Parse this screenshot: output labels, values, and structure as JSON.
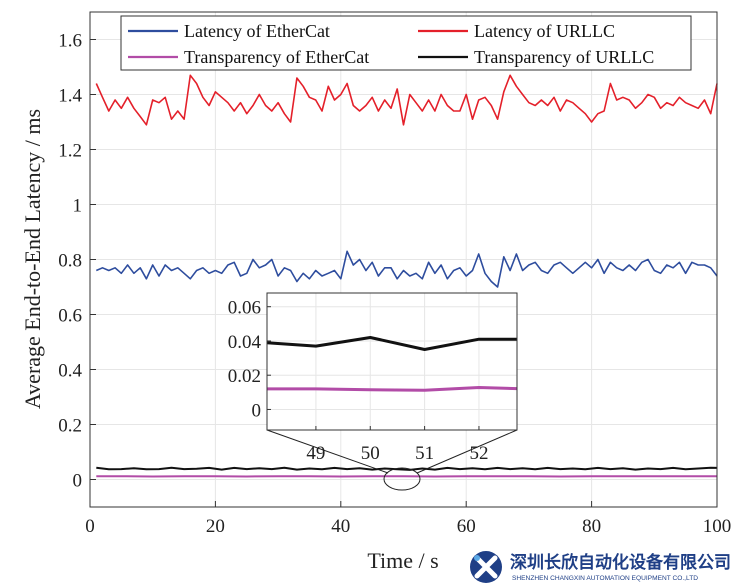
{
  "chart_data": {
    "type": "line",
    "title": "",
    "xlabel": "Time / s",
    "ylabel": "Average End-to-End Latency / ms",
    "xlim": [
      0,
      100
    ],
    "ylim": [
      -0.1,
      1.7
    ],
    "xticks": [
      0,
      20,
      40,
      60,
      80,
      100
    ],
    "xtick_labels": [
      "0",
      "20",
      "40",
      "60",
      "80",
      "100"
    ],
    "yticks": [
      0,
      0.2,
      0.4,
      0.6,
      0.8,
      1,
      1.2,
      1.4,
      1.6
    ],
    "ytick_labels": [
      "0",
      "0.2",
      "0.4",
      "0.6",
      "0.8",
      "1",
      "1.2",
      "1.4",
      "1.6"
    ],
    "grid": true,
    "legend_position": "top",
    "series": [
      {
        "name": "Latency of EtherCat",
        "color": "#2e4d9e",
        "x": [
          1,
          2,
          3,
          4,
          5,
          6,
          7,
          8,
          9,
          10,
          11,
          12,
          13,
          14,
          15,
          16,
          17,
          18,
          19,
          20,
          21,
          22,
          23,
          24,
          25,
          26,
          27,
          28,
          29,
          30,
          31,
          32,
          33,
          34,
          35,
          36,
          37,
          38,
          39,
          40,
          41,
          42,
          43,
          44,
          45,
          46,
          47,
          48,
          49,
          50,
          51,
          52,
          53,
          54,
          55,
          56,
          57,
          58,
          59,
          60,
          61,
          62,
          63,
          64,
          65,
          66,
          67,
          68,
          69,
          70,
          71,
          72,
          73,
          74,
          75,
          76,
          77,
          78,
          79,
          80,
          81,
          82,
          83,
          84,
          85,
          86,
          87,
          88,
          89,
          90,
          91,
          92,
          93,
          94,
          95,
          96,
          97,
          98,
          99,
          100
        ],
        "y": [
          0.76,
          0.77,
          0.76,
          0.77,
          0.75,
          0.78,
          0.75,
          0.77,
          0.73,
          0.78,
          0.74,
          0.78,
          0.76,
          0.77,
          0.75,
          0.73,
          0.76,
          0.77,
          0.75,
          0.76,
          0.75,
          0.78,
          0.79,
          0.74,
          0.75,
          0.8,
          0.77,
          0.78,
          0.8,
          0.74,
          0.77,
          0.76,
          0.72,
          0.75,
          0.73,
          0.76,
          0.74,
          0.75,
          0.76,
          0.73,
          0.83,
          0.78,
          0.8,
          0.76,
          0.79,
          0.74,
          0.77,
          0.77,
          0.73,
          0.76,
          0.74,
          0.75,
          0.73,
          0.79,
          0.75,
          0.78,
          0.73,
          0.76,
          0.77,
          0.74,
          0.76,
          0.82,
          0.75,
          0.72,
          0.7,
          0.81,
          0.76,
          0.82,
          0.76,
          0.78,
          0.79,
          0.76,
          0.75,
          0.78,
          0.79,
          0.77,
          0.75,
          0.77,
          0.79,
          0.77,
          0.8,
          0.75,
          0.79,
          0.77,
          0.76,
          0.78,
          0.76,
          0.79,
          0.8,
          0.76,
          0.75,
          0.78,
          0.77,
          0.79,
          0.75,
          0.79,
          0.78,
          0.78,
          0.77,
          0.74
        ]
      },
      {
        "name": "Latency of URLLC",
        "color": "#e4202a",
        "x": [
          1,
          2,
          3,
          4,
          5,
          6,
          7,
          8,
          9,
          10,
          11,
          12,
          13,
          14,
          15,
          16,
          17,
          18,
          19,
          20,
          21,
          22,
          23,
          24,
          25,
          26,
          27,
          28,
          29,
          30,
          31,
          32,
          33,
          34,
          35,
          36,
          37,
          38,
          39,
          40,
          41,
          42,
          43,
          44,
          45,
          46,
          47,
          48,
          49,
          50,
          51,
          52,
          53,
          54,
          55,
          56,
          57,
          58,
          59,
          60,
          61,
          62,
          63,
          64,
          65,
          66,
          67,
          68,
          69,
          70,
          71,
          72,
          73,
          74,
          75,
          76,
          77,
          78,
          79,
          80,
          81,
          82,
          83,
          84,
          85,
          86,
          87,
          88,
          89,
          90,
          91,
          92,
          93,
          94,
          95,
          96,
          97,
          98,
          99,
          100
        ],
        "y": [
          1.44,
          1.39,
          1.34,
          1.38,
          1.35,
          1.39,
          1.35,
          1.32,
          1.29,
          1.38,
          1.37,
          1.39,
          1.31,
          1.34,
          1.31,
          1.47,
          1.44,
          1.39,
          1.36,
          1.41,
          1.39,
          1.37,
          1.34,
          1.37,
          1.33,
          1.36,
          1.4,
          1.36,
          1.34,
          1.37,
          1.33,
          1.3,
          1.46,
          1.43,
          1.39,
          1.38,
          1.34,
          1.43,
          1.38,
          1.4,
          1.44,
          1.36,
          1.34,
          1.36,
          1.39,
          1.34,
          1.38,
          1.35,
          1.42,
          1.29,
          1.4,
          1.37,
          1.34,
          1.38,
          1.34,
          1.4,
          1.36,
          1.34,
          1.34,
          1.4,
          1.31,
          1.38,
          1.39,
          1.36,
          1.31,
          1.41,
          1.47,
          1.43,
          1.4,
          1.37,
          1.36,
          1.38,
          1.36,
          1.39,
          1.34,
          1.38,
          1.37,
          1.35,
          1.33,
          1.3,
          1.33,
          1.34,
          1.44,
          1.38,
          1.39,
          1.38,
          1.35,
          1.37,
          1.4,
          1.39,
          1.35,
          1.37,
          1.36,
          1.39,
          1.37,
          1.36,
          1.35,
          1.38,
          1.33,
          1.44
        ]
      },
      {
        "name": "Transparency of EtherCat",
        "color": "#b24ca7",
        "x": [
          1,
          5,
          10,
          15,
          20,
          25,
          30,
          35,
          40,
          45,
          50,
          55,
          60,
          65,
          70,
          75,
          80,
          85,
          90,
          95,
          100
        ],
        "y": [
          0.012,
          0.012,
          0.011,
          0.012,
          0.012,
          0.011,
          0.012,
          0.012,
          0.011,
          0.012,
          0.012,
          0.011,
          0.012,
          0.012,
          0.012,
          0.011,
          0.012,
          0.012,
          0.012,
          0.012,
          0.012
        ]
      },
      {
        "name": "Transparency of URLLC",
        "color": "#111111",
        "x": [
          1,
          3,
          5,
          7,
          9,
          11,
          13,
          15,
          17,
          19,
          21,
          23,
          25,
          27,
          29,
          31,
          33,
          35,
          37,
          39,
          41,
          43,
          45,
          47,
          49,
          51,
          53,
          55,
          57,
          59,
          61,
          63,
          65,
          67,
          69,
          71,
          73,
          75,
          77,
          79,
          81,
          83,
          85,
          87,
          89,
          91,
          93,
          95,
          97,
          99,
          100
        ],
        "y": [
          0.043,
          0.037,
          0.038,
          0.041,
          0.037,
          0.038,
          0.043,
          0.038,
          0.039,
          0.042,
          0.036,
          0.042,
          0.038,
          0.041,
          0.038,
          0.043,
          0.036,
          0.04,
          0.037,
          0.042,
          0.038,
          0.041,
          0.036,
          0.04,
          0.037,
          0.035,
          0.04,
          0.036,
          0.042,
          0.038,
          0.041,
          0.037,
          0.042,
          0.038,
          0.041,
          0.037,
          0.042,
          0.038,
          0.04,
          0.037,
          0.042,
          0.038,
          0.041,
          0.036,
          0.04,
          0.038,
          0.042,
          0.037,
          0.04,
          0.043,
          0.042
        ]
      }
    ],
    "inset": {
      "xlim": [
        48.1,
        52.7
      ],
      "ylim": [
        -0.012,
        0.068
      ],
      "xticks": [
        49,
        50,
        51,
        52
      ],
      "xtick_labels": [
        "49",
        "50",
        "51",
        "52"
      ],
      "yticks": [
        0,
        0.02,
        0.04,
        0.06
      ],
      "ytick_labels": [
        "0",
        "0.02",
        "0.04",
        "0.06"
      ],
      "series": [
        {
          "name": "Transparency of EtherCat",
          "color": "#b24ca7",
          "x": [
            48.1,
            49,
            50,
            51,
            52,
            52.7
          ],
          "y": [
            0.012,
            0.012,
            0.0115,
            0.0112,
            0.0128,
            0.0122
          ]
        },
        {
          "name": "Transparency of URLLC",
          "color": "#111111",
          "x": [
            48.1,
            49,
            50,
            51,
            52,
            52.7
          ],
          "y": [
            0.039,
            0.037,
            0.042,
            0.035,
            0.041,
            0.041
          ]
        }
      ]
    }
  },
  "watermark": {
    "company_cn": "深圳长欣自动化设备有限公司",
    "company_en": "SHENZHEN CHANGXIN AUTOMATION EQUIPMENT CO.,LTD"
  }
}
